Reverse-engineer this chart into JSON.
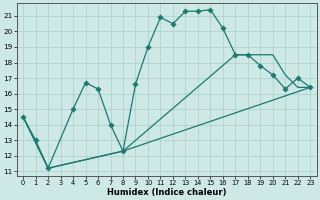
{
  "xlabel": "Humidex (Indice chaleur)",
  "background_color": "#cde8e5",
  "grid_color": "#aacfcc",
  "line_color": "#1e7a70",
  "xlim": [
    -0.5,
    23.5
  ],
  "ylim": [
    10.7,
    21.8
  ],
  "yticks": [
    11,
    12,
    13,
    14,
    15,
    16,
    17,
    18,
    19,
    20,
    21
  ],
  "xticks": [
    0,
    1,
    2,
    3,
    4,
    5,
    6,
    7,
    8,
    9,
    10,
    11,
    12,
    13,
    14,
    15,
    16,
    17,
    18,
    19,
    20,
    21,
    22,
    23
  ],
  "line1_x": [
    0,
    1,
    2,
    4,
    5,
    6,
    7,
    8,
    9,
    10,
    11,
    12,
    13,
    14,
    15,
    16,
    17,
    18,
    19,
    20,
    21,
    22,
    23
  ],
  "line1_y": [
    14.5,
    13.0,
    11.2,
    15.0,
    16.7,
    16.3,
    14.0,
    12.3,
    16.6,
    19.0,
    20.9,
    20.5,
    21.3,
    21.3,
    21.4,
    20.2,
    18.5,
    18.5,
    17.8,
    17.2,
    16.3,
    17.0,
    16.4
  ],
  "line2_x": [
    0,
    2,
    8,
    23
  ],
  "line2_y": [
    14.5,
    11.2,
    12.3,
    16.4
  ],
  "line3_x": [
    0,
    2,
    8,
    17,
    19,
    20,
    21,
    22,
    23
  ],
  "line3_y": [
    14.5,
    11.2,
    12.3,
    18.5,
    18.5,
    18.5,
    17.2,
    16.4,
    16.4
  ]
}
